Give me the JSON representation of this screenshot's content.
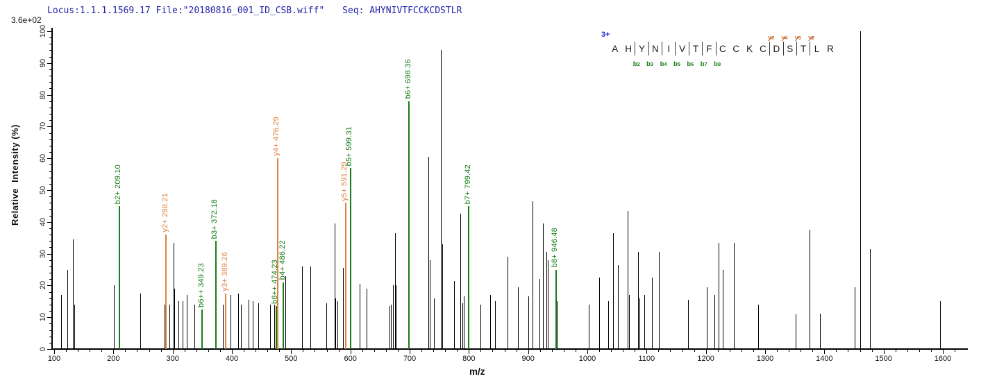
{
  "header": {
    "locus_file": "Locus:1.1.1.1569.17 File:\"20180816_001_ID_CSB.wiff\"",
    "seq": "Seq: AHYNIVTFCCKCDSTLR"
  },
  "colors": {
    "header_blue": "#2222aa",
    "charge_blue": "#2a2ad4",
    "b_ion_green": "#177d17",
    "y_ion_orange": "#e0803f",
    "peak_black": "#000000",
    "axis_black": "#000000"
  },
  "chart_data": {
    "type": "bar",
    "subtype": "ms2-spectrum",
    "y_axis": {
      "label": "Relative  Intensity (%)",
      "scale_label": "3.6e+02",
      "min": 0,
      "max": 100,
      "major_ticks": [
        0,
        10,
        20,
        30,
        40,
        50,
        60,
        70,
        80,
        90,
        100
      ],
      "minor_tick_step": 2,
      "grid": false
    },
    "x_axis": {
      "label": "m/z",
      "min": 100,
      "max": 1600,
      "major_ticks": [
        100,
        200,
        300,
        400,
        500,
        600,
        700,
        800,
        900,
        1000,
        1100,
        1200,
        1300,
        1400,
        1500,
        1600
      ],
      "minor_tick_step": 20,
      "grid": false
    },
    "legend": "none",
    "peaks_black": [
      [
        112,
        17
      ],
      [
        122,
        25
      ],
      [
        132,
        34.5
      ],
      [
        134,
        14
      ],
      [
        201,
        20
      ],
      [
        245,
        17.5
      ],
      [
        286,
        14
      ],
      [
        295,
        14
      ],
      [
        301,
        33.5
      ],
      [
        303,
        19
      ],
      [
        310,
        15
      ],
      [
        317,
        15
      ],
      [
        324,
        17
      ],
      [
        337,
        14
      ],
      [
        385,
        14
      ],
      [
        398,
        17
      ],
      [
        410,
        17.5
      ],
      [
        415,
        14
      ],
      [
        428,
        15.5
      ],
      [
        435,
        15
      ],
      [
        444,
        14.5
      ],
      [
        465,
        14
      ],
      [
        471,
        14
      ],
      [
        490,
        23
      ],
      [
        518,
        26
      ],
      [
        533,
        26
      ],
      [
        559,
        14.5
      ],
      [
        573,
        39.5
      ],
      [
        575,
        16
      ],
      [
        578,
        15
      ],
      [
        587,
        25.5
      ],
      [
        616,
        20.5
      ],
      [
        627,
        19
      ],
      [
        666,
        13.5
      ],
      [
        668,
        14
      ],
      [
        672,
        20
      ],
      [
        675,
        36.5
      ],
      [
        677,
        20
      ],
      [
        732,
        60.5
      ],
      [
        734,
        28
      ],
      [
        741,
        16
      ],
      [
        753,
        94
      ],
      [
        755,
        33
      ],
      [
        775,
        21.5
      ],
      [
        785,
        42.5
      ],
      [
        789,
        14.5
      ],
      [
        791,
        16.5
      ],
      [
        819,
        14
      ],
      [
        836,
        17
      ],
      [
        844,
        15
      ],
      [
        865,
        29
      ],
      [
        883,
        19.5
      ],
      [
        900,
        16.5
      ],
      [
        908,
        46.5
      ],
      [
        919,
        22
      ],
      [
        925,
        39.5
      ],
      [
        931,
        30.5
      ],
      [
        933,
        28
      ],
      [
        948,
        15
      ],
      [
        1002,
        14
      ],
      [
        1020,
        22.5
      ],
      [
        1035,
        15
      ],
      [
        1043,
        36.5
      ],
      [
        1051,
        26.5
      ],
      [
        1068,
        43.5
      ],
      [
        1070,
        17
      ],
      [
        1086,
        30.5
      ],
      [
        1088,
        16
      ],
      [
        1096,
        17
      ],
      [
        1109,
        22.5
      ],
      [
        1121,
        30.5
      ],
      [
        1170,
        15.5
      ],
      [
        1202,
        19.5
      ],
      [
        1215,
        17
      ],
      [
        1221,
        33.5
      ],
      [
        1229,
        25
      ],
      [
        1247,
        33.5
      ],
      [
        1288,
        14
      ],
      [
        1351,
        11
      ],
      [
        1375,
        37.5
      ],
      [
        1393,
        11.2
      ],
      [
        1451,
        19.5
      ],
      [
        1460,
        100
      ],
      [
        1477,
        31.5
      ],
      [
        1595,
        15
      ]
    ],
    "fragments": [
      {
        "label": "b2+ 209.10",
        "mz": 209.1,
        "intensity": 45,
        "ion": "b"
      },
      {
        "label": "y2+ 288.21",
        "mz": 288.21,
        "intensity": 36,
        "ion": "y"
      },
      {
        "label": "b6++ 349.23",
        "mz": 349.23,
        "intensity": 12.5,
        "ion": "b"
      },
      {
        "label": "b3+ 372.18",
        "mz": 372.18,
        "intensity": 34,
        "ion": "b"
      },
      {
        "label": "y3+ 389.26",
        "mz": 389.26,
        "intensity": 17.5,
        "ion": "y"
      },
      {
        "label": "b8++ 474.23",
        "mz": 474.23,
        "intensity": 13.5,
        "ion": "b"
      },
      {
        "label": "y4+ 476.29",
        "mz": 476.29,
        "intensity": 60,
        "ion": "y"
      },
      {
        "label": "b4+ 486.22",
        "mz": 486.22,
        "intensity": 21,
        "ion": "b"
      },
      {
        "label": "y5+ 591.29",
        "mz": 591.29,
        "intensity": 46,
        "ion": "y"
      },
      {
        "label": "b5+ 599.31",
        "mz": 599.31,
        "intensity": 57,
        "ion": "b"
      },
      {
        "label": "b6+ 698.36",
        "mz": 698.36,
        "intensity": 78,
        "ion": "b"
      },
      {
        "label": "b7+ 799.42",
        "mz": 799.42,
        "intensity": 45,
        "ion": "b"
      },
      {
        "label": "b8+ 946.48",
        "mz": 946.48,
        "intensity": 25,
        "ion": "b"
      }
    ],
    "sequence": {
      "charge": "3+",
      "peptide": "AHYNIVTFCCKCDSTLR",
      "residues": [
        {
          "aa": "A"
        },
        {
          "aa": "H"
        },
        {
          "aa": "Y",
          "marker": {
            "ion": "b",
            "letter": "b",
            "num": "2"
          }
        },
        {
          "aa": "N",
          "marker": {
            "ion": "b",
            "letter": "b",
            "num": "3"
          }
        },
        {
          "aa": "I",
          "marker": {
            "ion": "b",
            "letter": "b",
            "num": "4"
          }
        },
        {
          "aa": "V",
          "marker": {
            "ion": "b",
            "letter": "b",
            "num": "5"
          }
        },
        {
          "aa": "T",
          "marker": {
            "ion": "b",
            "letter": "b",
            "num": "6"
          }
        },
        {
          "aa": "F",
          "marker": {
            "ion": "b",
            "letter": "b",
            "num": "7"
          }
        },
        {
          "aa": "C",
          "marker": {
            "ion": "b",
            "letter": "b",
            "num": "8"
          }
        },
        {
          "aa": "C"
        },
        {
          "aa": "K"
        },
        {
          "aa": "C"
        },
        {
          "aa": "D",
          "marker": {
            "ion": "y",
            "letter": "y",
            "num": "5"
          }
        },
        {
          "aa": "S",
          "marker": {
            "ion": "y",
            "letter": "y",
            "num": "4"
          }
        },
        {
          "aa": "T",
          "marker": {
            "ion": "y",
            "letter": "y",
            "num": "3"
          }
        },
        {
          "aa": "L",
          "marker": {
            "ion": "y",
            "letter": "y",
            "num": "2"
          }
        },
        {
          "aa": "R"
        }
      ]
    }
  }
}
